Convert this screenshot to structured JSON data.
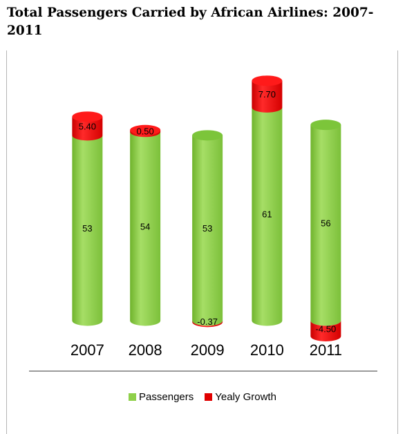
{
  "colors": {
    "passengers": "#8fd04a",
    "growth": "#e00000"
  },
  "chart_data": {
    "type": "bar",
    "stacked": true,
    "title": "Total Passengers Carried by African Airlines: 2007-2011",
    "categories": [
      "2007",
      "2008",
      "2009",
      "2010",
      "2011"
    ],
    "series": [
      {
        "name": "Passengers",
        "values": [
          53,
          54,
          53,
          61,
          56
        ]
      },
      {
        "name": "Yealy Growth",
        "values": [
          5.4,
          0.5,
          -0.37,
          7.7,
          -4.5
        ]
      }
    ],
    "value_labels": {
      "Passengers": [
        "53",
        "54",
        "53",
        "61",
        "56"
      ],
      "Yealy Growth": [
        "5.40",
        "0.50",
        "-0.37",
        "7.70",
        "-4.50"
      ]
    },
    "legend_position": "bottom",
    "grid": false
  }
}
